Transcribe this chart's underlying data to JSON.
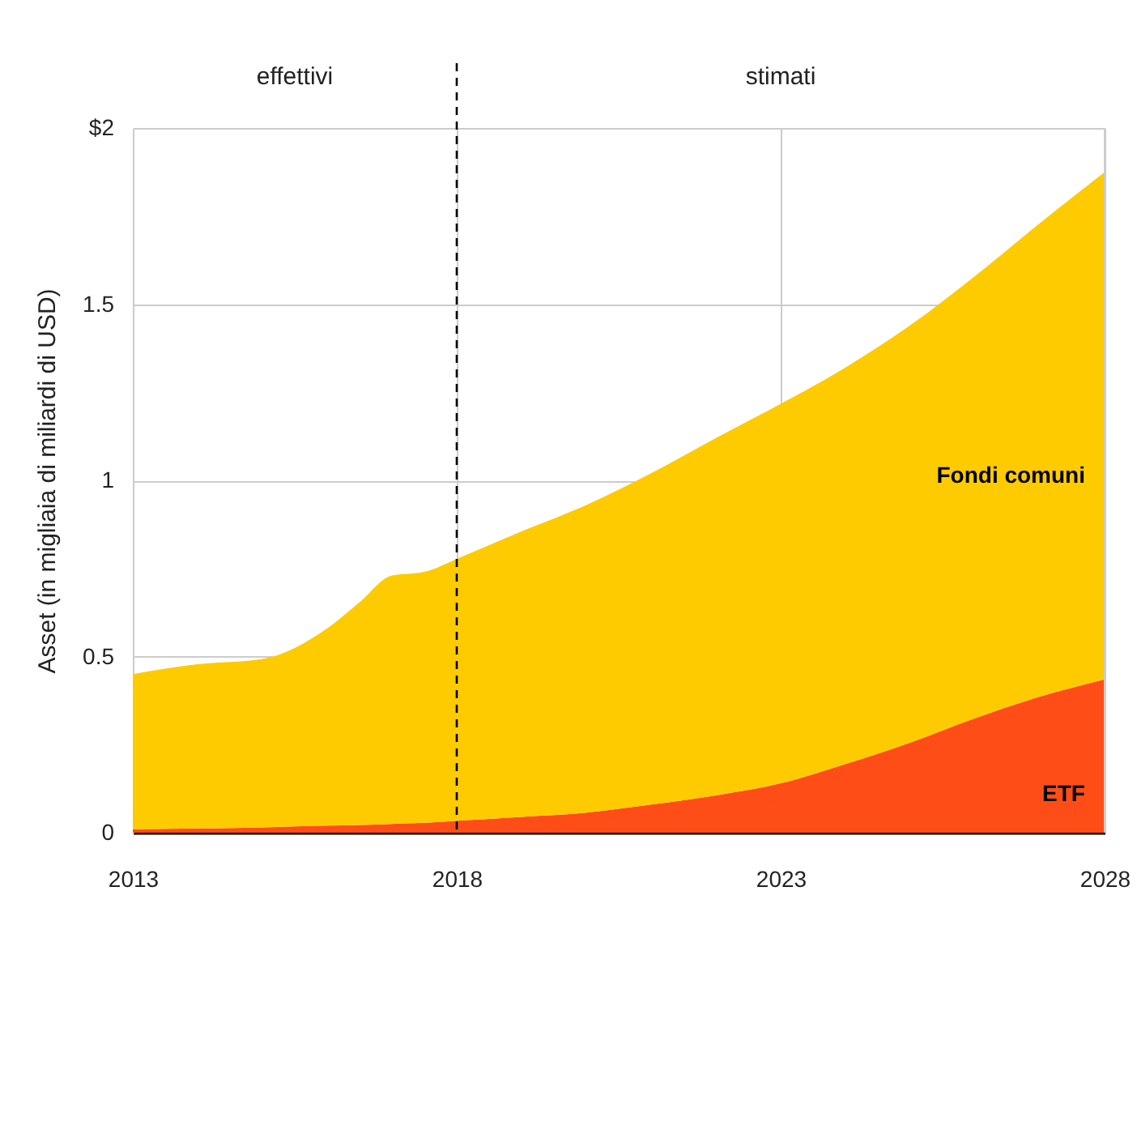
{
  "chart_data": {
    "type": "area",
    "stacked": true,
    "ylabel": "Asset (in migliaia di miliardi di USD)",
    "x": [
      2013,
      2014,
      2015,
      2016,
      2016.5,
      2017,
      2017.5,
      2018,
      2019,
      2020,
      2021,
      2022,
      2023,
      2024,
      2025,
      2026,
      2027,
      2028
    ],
    "series": [
      {
        "name": "ETF",
        "color": "#ff4d17",
        "values": [
          0.01,
          0.012,
          0.015,
          0.02,
          0.022,
          0.025,
          0.028,
          0.034,
          0.045,
          0.057,
          0.08,
          0.106,
          0.14,
          0.195,
          0.256,
          0.325,
          0.386,
          0.435
        ]
      },
      {
        "name": "Fondi comuni",
        "color": "#fdcb00",
        "values": [
          0.44,
          0.466,
          0.478,
          0.56,
          0.632,
          0.705,
          0.712,
          0.743,
          0.81,
          0.873,
          0.94,
          1.014,
          1.077,
          1.125,
          1.184,
          1.255,
          1.344,
          1.44
        ]
      }
    ],
    "xlim": [
      2013,
      2028
    ],
    "xticks": [
      2013,
      2018,
      2023,
      2028
    ],
    "ylim": [
      0,
      2
    ],
    "yticks": [
      0,
      0.5,
      1,
      1.5,
      {
        "value": 2,
        "label": "$2"
      }
    ],
    "grid": true,
    "ref_lines": [
      {
        "axis": "x",
        "value": 2018,
        "color": "#000000",
        "line_style": "dashed"
      }
    ],
    "annotations": [
      "effettivi",
      "stimati"
    ]
  }
}
